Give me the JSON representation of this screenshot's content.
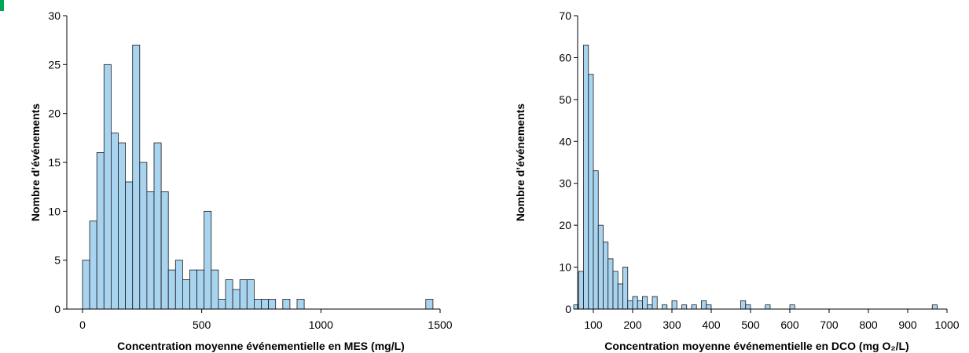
{
  "colors": {
    "accent": "#00a651",
    "bar_fill": "#a8d4f0",
    "bar_stroke": "#1a1a1a"
  },
  "chart_data": [
    {
      "type": "bar",
      "title": "",
      "xlabel": "Concentration moyenne événementielle en MES (mg/L)",
      "ylabel": "Nombre d’événements",
      "xlim": [
        0,
        1500
      ],
      "ylim": [
        0,
        30
      ],
      "x_ticks": [
        0,
        500,
        1000,
        1500
      ],
      "y_ticks": [
        0,
        5,
        10,
        15,
        20,
        25,
        30
      ],
      "bin_width": 30,
      "x": [
        0,
        30,
        60,
        90,
        120,
        150,
        180,
        210,
        240,
        270,
        300,
        330,
        360,
        390,
        420,
        450,
        480,
        510,
        540,
        570,
        600,
        630,
        660,
        690,
        720,
        750,
        780,
        810,
        840,
        870,
        900,
        930,
        960,
        990,
        1020,
        1050,
        1080,
        1110,
        1140,
        1170,
        1200,
        1230,
        1260,
        1290,
        1320,
        1350,
        1380,
        1410,
        1440
      ],
      "values": [
        5,
        9,
        16,
        25,
        18,
        17,
        13,
        27,
        15,
        12,
        17,
        12,
        4,
        5,
        3,
        4,
        4,
        10,
        4,
        1,
        3,
        2,
        3,
        3,
        1,
        1,
        1,
        0,
        1,
        0,
        1,
        0,
        0,
        0,
        0,
        0,
        0,
        0,
        0,
        0,
        0,
        0,
        0,
        0,
        0,
        0,
        0,
        0,
        1
      ]
    },
    {
      "type": "bar",
      "title": "",
      "xlabel": "Concentration moyenne événementielle en DCO (mg O₂/L)",
      "ylabel": "Nombre d’événements",
      "xlim": [
        0,
        1000
      ],
      "ylim": [
        0,
        70
      ],
      "x_ticks": [
        100,
        200,
        300,
        400,
        500,
        600,
        700,
        800,
        900,
        1000
      ],
      "y_ticks": [
        0,
        10,
        20,
        30,
        40,
        50,
        60,
        70
      ],
      "bin_width": 12.5,
      "x": [
        50,
        62.5,
        75,
        87.5,
        100,
        112.5,
        125,
        137.5,
        150,
        162.5,
        175,
        187.5,
        200,
        212.5,
        225,
        237.5,
        250,
        262.5,
        275,
        287.5,
        300,
        312.5,
        325,
        337.5,
        350,
        362.5,
        375,
        387.5,
        400,
        412.5,
        425,
        437.5,
        450,
        462.5,
        475,
        487.5,
        500,
        512.5,
        525,
        537.5,
        550,
        562.5,
        575,
        587.5,
        600,
        612.5,
        625,
        637.5,
        650,
        662.5,
        675,
        687.5,
        700,
        712.5,
        725,
        737.5,
        750,
        762.5,
        775,
        787.5,
        800,
        812.5,
        825,
        837.5,
        850,
        862.5,
        875,
        887.5,
        900,
        912.5,
        925,
        937.5,
        950,
        962.5
      ],
      "values": [
        1,
        9,
        63,
        56,
        33,
        20,
        16,
        12,
        9,
        6,
        10,
        2,
        3,
        2,
        3,
        1,
        3,
        0,
        1,
        0,
        2,
        0,
        1,
        0,
        1,
        0,
        2,
        1,
        0,
        0,
        0,
        0,
        0,
        0,
        2,
        1,
        0,
        0,
        0,
        1,
        0,
        0,
        0,
        0,
        1,
        0,
        0,
        0,
        0,
        0,
        0,
        0,
        0,
        0,
        0,
        0,
        0,
        0,
        0,
        0,
        0,
        0,
        0,
        0,
        0,
        0,
        0,
        0,
        0,
        0,
        0,
        0,
        0,
        1
      ]
    }
  ]
}
